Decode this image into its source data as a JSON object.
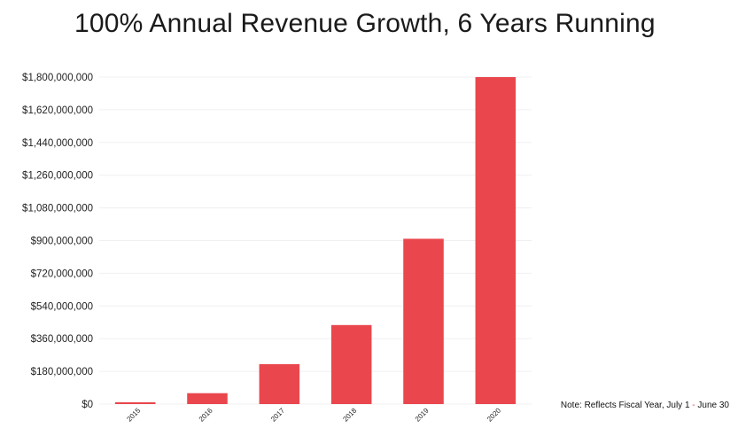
{
  "chart_data": {
    "type": "bar",
    "title": "100% Annual Revenue Growth, 6 Years Running",
    "xlabel": "",
    "ylabel": "",
    "categories": [
      "2015",
      "2016",
      "2017",
      "2018",
      "2019",
      "2020"
    ],
    "values": [
      10000000,
      60000000,
      220000000,
      435000000,
      910000000,
      1800000000
    ],
    "ylim": [
      0,
      1800000000
    ],
    "yticks": [
      0,
      180000000,
      360000000,
      540000000,
      720000000,
      900000000,
      1080000000,
      1260000000,
      1440000000,
      1620000000,
      1800000000
    ],
    "ytick_labels": [
      "$0",
      "$180,000,000",
      "$360,000,000",
      "$540,000,000",
      "$720,000,000",
      "$900,000,000",
      "$1,080,000,000",
      "$1,260,000,000",
      "$1,440,000,000",
      "$1,620,000,000",
      "$1,800,000,000"
    ],
    "grid": true,
    "legend": "none",
    "bar_color": "#e9474d",
    "grid_color": "#f0f0f0"
  },
  "note": {
    "prefix": "Note: Reflects Fiscal Year, July 1",
    "separator": " - ",
    "suffix": "June 30",
    "separator_color": "#e9474d"
  }
}
